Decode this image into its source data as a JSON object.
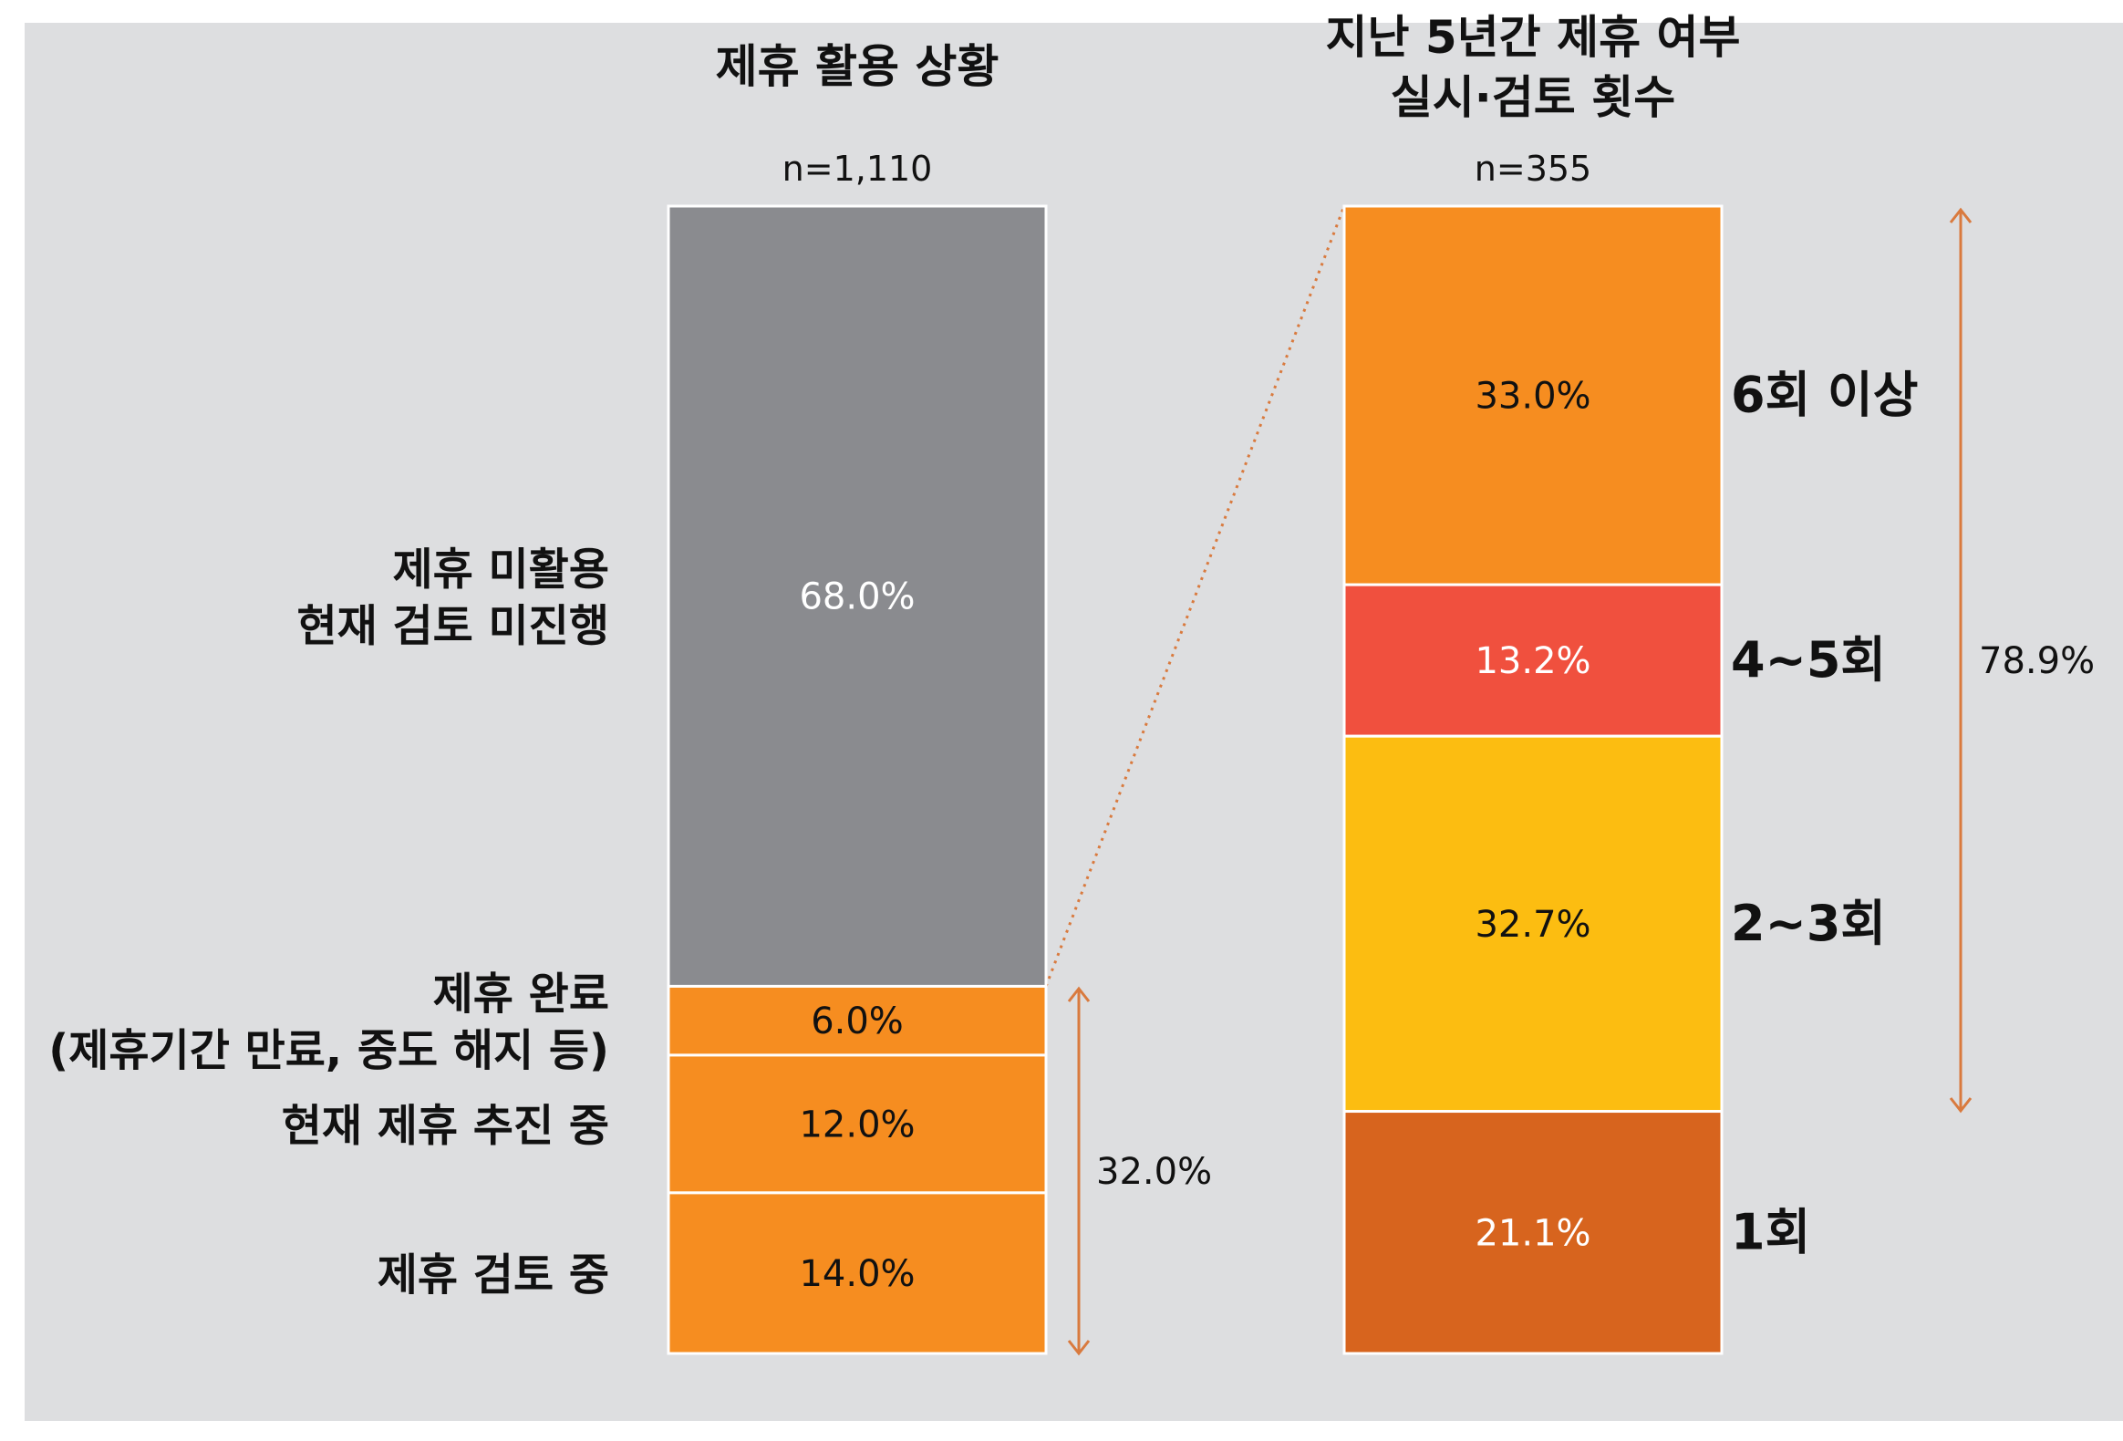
{
  "colors": {
    "background": "#dddee0",
    "gray": "#8a8b8f",
    "orange": "#f68d20",
    "red": "#f0503e",
    "yellow": "#fcbd11",
    "dark_orange": "#d7641e",
    "arrow": "#d97a3e",
    "text_dark": "#111111",
    "text_light": "#ffffff"
  },
  "chart_data": [
    {
      "type": "bar",
      "stacked": true,
      "title": "제휴 활용 상황",
      "n_label": "n=1,110",
      "unit": "%",
      "segments": [
        {
          "label": "제휴 미활용\n현재 검토 미진행",
          "value": 68.0,
          "value_label": "68.0%",
          "color": "#8a8b8f",
          "text_color": "light"
        },
        {
          "label": "제휴 완료\n(제휴기간 만료, 중도 해지 등)",
          "value": 6.0,
          "value_label": "6.0%",
          "color": "#f68d20",
          "text_color": "dark"
        },
        {
          "label": "현재 제휴 추진 중",
          "value": 12.0,
          "value_label": "12.0%",
          "color": "#f68d20",
          "text_color": "dark"
        },
        {
          "label": "제휴 검토 중",
          "value": 14.0,
          "value_label": "14.0%",
          "color": "#f68d20",
          "text_color": "dark"
        }
      ],
      "bracket": {
        "label": "32.0%",
        "covers": [
          "제휴 완료",
          "현재 제휴 추진 중",
          "제휴 검토 중"
        ]
      }
    },
    {
      "type": "bar",
      "stacked": true,
      "title": "지난 5년간 제휴 여부\n실시·검토 횟수",
      "n_label": "n=355",
      "unit": "%",
      "segments": [
        {
          "label": "6회 이상",
          "value": 33.0,
          "value_label": "33.0%",
          "color": "#f68d20",
          "text_color": "dark"
        },
        {
          "label": "4~5회",
          "value": 13.2,
          "value_label": "13.2%",
          "color": "#f0503e",
          "text_color": "light"
        },
        {
          "label": "2~3회",
          "value": 32.7,
          "value_label": "32.7%",
          "color": "#fcbd11",
          "text_color": "dark"
        },
        {
          "label": "1회",
          "value": 21.1,
          "value_label": "21.1%",
          "color": "#d7641e",
          "text_color": "light"
        }
      ],
      "bracket": {
        "label": "78.9%",
        "covers": [
          "6회 이상",
          "4~5회",
          "2~3회"
        ]
      }
    }
  ]
}
